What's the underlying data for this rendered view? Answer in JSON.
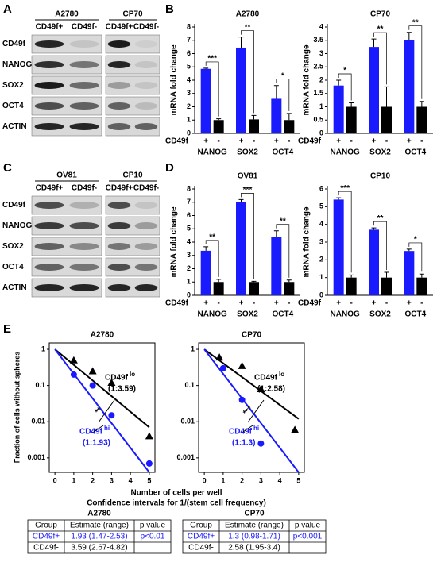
{
  "panel_labels": [
    "A",
    "B",
    "C",
    "D",
    "E"
  ],
  "blots": [
    {
      "groups": [
        {
          "name": "A2780",
          "lanes": [
            "CD49f+",
            "CD49f-"
          ]
        },
        {
          "name": "CP70",
          "lanes": [
            "CD49f+",
            "CD49f-"
          ]
        }
      ],
      "rows": [
        "CD49f",
        "NANOG",
        "SOX2",
        "OCT4",
        "ACTIN"
      ]
    },
    {
      "groups": [
        {
          "name": "OV81",
          "lanes": [
            "CD49f+",
            "CD49f-"
          ]
        },
        {
          "name": "CP10",
          "lanes": [
            "CD49f+",
            "CD49f-"
          ]
        }
      ],
      "rows": [
        "CD49f",
        "NANOG",
        "SOX2",
        "OCT4",
        "ACTIN"
      ]
    }
  ],
  "chart_data": [
    {
      "type": "bar",
      "title": "A2780",
      "ylabel": "mRNA fold change",
      "group_label": "CD49f",
      "categories": [
        "NANOG",
        "SOX2",
        "OCT4"
      ],
      "ylim": [
        0,
        8
      ],
      "yticks": [
        0,
        1,
        2,
        3,
        4,
        5,
        6,
        7,
        8
      ],
      "series": [
        {
          "name": "+",
          "color": "#1a1aff",
          "values": [
            4.85,
            6.45,
            2.6
          ],
          "errors": [
            0.05,
            0.8,
            1.0
          ]
        },
        {
          "name": "-",
          "color": "#000000",
          "values": [
            1.0,
            1.05,
            1.0
          ],
          "errors": [
            0.1,
            0.3,
            0.5
          ]
        }
      ],
      "significance": [
        "***",
        "**",
        "*"
      ]
    },
    {
      "type": "bar",
      "title": "CP70",
      "ylabel": "mRNA fold change",
      "group_label": "CD49f",
      "categories": [
        "NANOG",
        "SOX2",
        "OCT4"
      ],
      "ylim": [
        0,
        4
      ],
      "yticks": [
        0,
        0.5,
        1,
        1.5,
        2,
        2.5,
        3,
        3.5,
        4
      ],
      "series": [
        {
          "name": "+",
          "color": "#1a1aff",
          "values": [
            1.8,
            3.25,
            3.5
          ],
          "errors": [
            0.2,
            0.3,
            0.3
          ]
        },
        {
          "name": "-",
          "color": "#000000",
          "values": [
            1.0,
            1.0,
            1.0
          ],
          "errors": [
            0.15,
            0.75,
            0.2
          ]
        }
      ],
      "significance": [
        "*",
        "**",
        "**"
      ]
    },
    {
      "type": "bar",
      "title": "OV81",
      "ylabel": "mRNA fold change",
      "group_label": "CD49f",
      "categories": [
        "NANOG",
        "SOX2",
        "OCT4"
      ],
      "ylim": [
        0,
        8
      ],
      "yticks": [
        0,
        1,
        2,
        3,
        4,
        5,
        6,
        7,
        8
      ],
      "series": [
        {
          "name": "+",
          "color": "#1a1aff",
          "values": [
            3.35,
            7.0,
            4.4
          ],
          "errors": [
            0.3,
            0.2,
            0.45
          ]
        },
        {
          "name": "-",
          "color": "#000000",
          "values": [
            1.0,
            1.0,
            1.0
          ],
          "errors": [
            0.2,
            0.05,
            0.15
          ]
        }
      ],
      "significance": [
        "**",
        "***",
        "**"
      ]
    },
    {
      "type": "bar",
      "title": "CP10",
      "ylabel": "mRNA fold change",
      "group_label": "CD49f",
      "categories": [
        "NANOG",
        "SOX2",
        "OCT4"
      ],
      "ylim": [
        0,
        6
      ],
      "yticks": [
        0,
        1,
        2,
        3,
        4,
        5,
        6
      ],
      "series": [
        {
          "name": "+",
          "color": "#1a1aff",
          "values": [
            5.4,
            3.7,
            2.5
          ],
          "errors": [
            0.1,
            0.1,
            0.1
          ]
        },
        {
          "name": "-",
          "color": "#000000",
          "values": [
            1.0,
            1.0,
            1.0
          ],
          "errors": [
            0.15,
            0.3,
            0.2
          ]
        }
      ],
      "significance": [
        "***",
        "**",
        "*"
      ]
    },
    {
      "type": "scatter",
      "title": "A2780",
      "log_y": true,
      "xlim": [
        -0.3,
        5.3
      ],
      "xticks": [
        0,
        1,
        2,
        3,
        4,
        5
      ],
      "ylim": [
        0.0004,
        1.5
      ],
      "yticks": [
        1,
        0.1,
        0.01,
        0.001
      ],
      "annotation": "**",
      "series": [
        {
          "name": "CD49f",
          "sup": "lo",
          "ratio": "(1:3.59)",
          "color": "#000000",
          "marker": "triangle",
          "x": [
            1,
            2,
            3,
            5
          ],
          "y": [
            0.5,
            0.25,
            0.12,
            0.004
          ],
          "fit": {
            "x": [
              0,
              5
            ],
            "y": [
              1,
              0.007
            ]
          }
        },
        {
          "name": "CD49f",
          "sup": "hi",
          "ratio": "(1:1.93)",
          "color": "#1a1aff",
          "marker": "circle",
          "x": [
            1,
            2,
            3,
            5
          ],
          "y": [
            0.2,
            0.1,
            0.015,
            0.0007
          ],
          "fit": {
            "x": [
              0,
              5
            ],
            "y": [
              1,
              0.0004
            ]
          }
        }
      ]
    },
    {
      "type": "scatter",
      "title": "CP70",
      "log_y": true,
      "xlim": [
        -0.3,
        5.3
      ],
      "xticks": [
        0,
        1,
        2,
        3,
        4,
        5
      ],
      "ylim": [
        0.0004,
        1.5
      ],
      "yticks": [
        1,
        0.1,
        0.01,
        0.001
      ],
      "annotation": "***",
      "series": [
        {
          "name": "CD49f",
          "sup": "lo",
          "ratio": "(1:2.58)",
          "color": "#000000",
          "marker": "triangle",
          "x": [
            0.8,
            2,
            3,
            4.8
          ],
          "y": [
            0.6,
            0.35,
            0.08,
            0.006
          ],
          "fit": {
            "x": [
              0,
              5
            ],
            "y": [
              1,
              0.012
            ]
          }
        },
        {
          "name": "CD49f",
          "sup": "hi",
          "ratio": "(1:1.3)",
          "color": "#1a1aff",
          "marker": "circle",
          "x": [
            1,
            2,
            3
          ],
          "y": [
            0.3,
            0.04,
            0.0025
          ],
          "fit": {
            "x": [
              0,
              5
            ],
            "y": [
              1,
              0.0004
            ]
          }
        }
      ]
    }
  ],
  "panel_E": {
    "ylabel": "Fraction of cells without spheres",
    "xlabel": "Number of cells per well",
    "ci_title": "Confidence intervals for 1/(stem cell frequency)"
  },
  "tables": [
    {
      "title": "A2780",
      "header": [
        "Group",
        "Estimate (range)",
        "p value"
      ],
      "row_colors": [
        "#1a1aff",
        "#000000"
      ],
      "rows": [
        [
          "CD49f+",
          "1.93 (1.47-2.53)",
          "p<0.01"
        ],
        [
          "CD49f-",
          "3.59 (2.67-4.82)"
        ]
      ]
    },
    {
      "title": "CP70",
      "header": [
        "Group",
        "Estimate (range)",
        "p value"
      ],
      "row_colors": [
        "#1a1aff",
        "#000000"
      ],
      "rows": [
        [
          "CD49f+",
          "1.3 (0.98-1.71)",
          "p<0.001"
        ],
        [
          "CD49f-",
          "2.58 (1.95-3.4)"
        ]
      ]
    }
  ]
}
